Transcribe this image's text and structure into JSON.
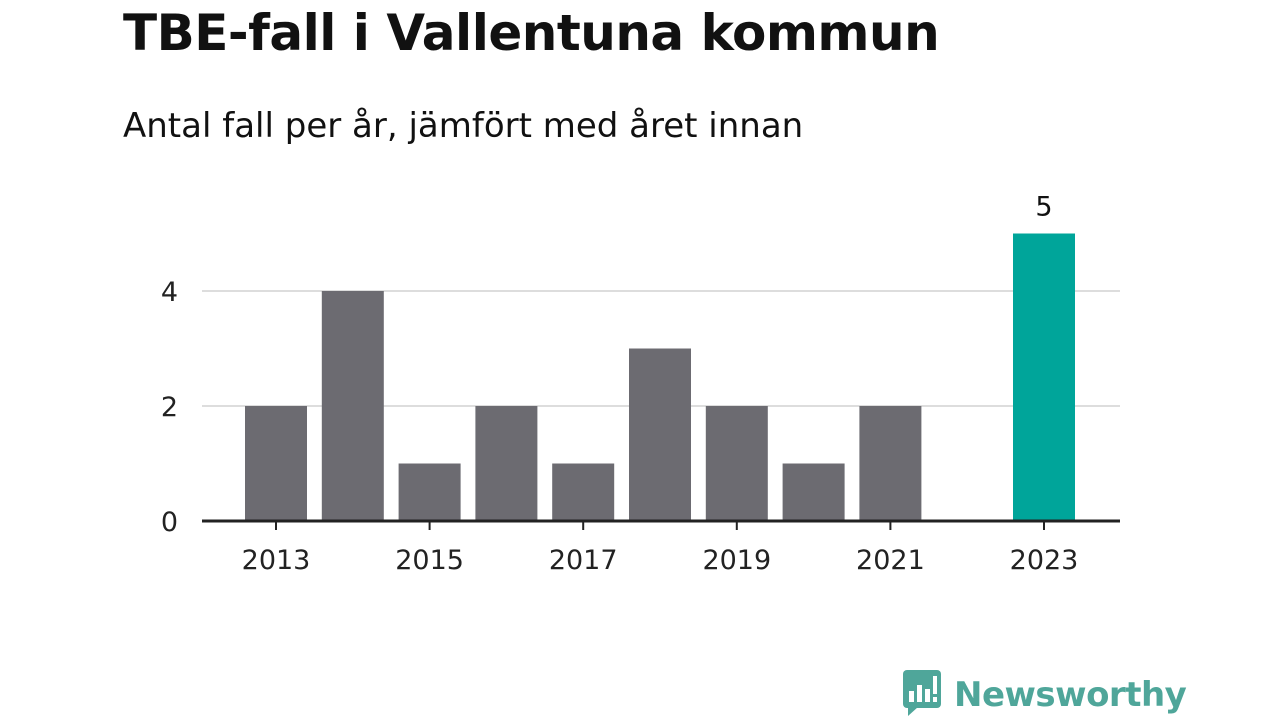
{
  "title": "TBE-fall i Vallentuna kommun",
  "subtitle": "Antal fall per år, jämfört med året innan",
  "brand": {
    "name": "Newsworthy",
    "icon": "bar-chart-bubble-icon",
    "color": "#4fa69a"
  },
  "chart_data": {
    "type": "bar",
    "categories": [
      "2013",
      "2014",
      "2015",
      "2016",
      "2017",
      "2018",
      "2019",
      "2020",
      "2021",
      "2022",
      "2023"
    ],
    "values": [
      2,
      4,
      1,
      2,
      1,
      3,
      2,
      1,
      2,
      null,
      5
    ],
    "x_tick_labels": [
      "2013",
      "2015",
      "2017",
      "2019",
      "2021",
      "2023"
    ],
    "y_ticks": [
      0,
      2,
      4
    ],
    "ylim": [
      0,
      5
    ],
    "grid": true,
    "bar_color": "#6c6b71",
    "highlight_color": "#00a59a",
    "highlight_category": "2023",
    "data_labels": [
      {
        "category": "2023",
        "text": "5"
      }
    ]
  }
}
